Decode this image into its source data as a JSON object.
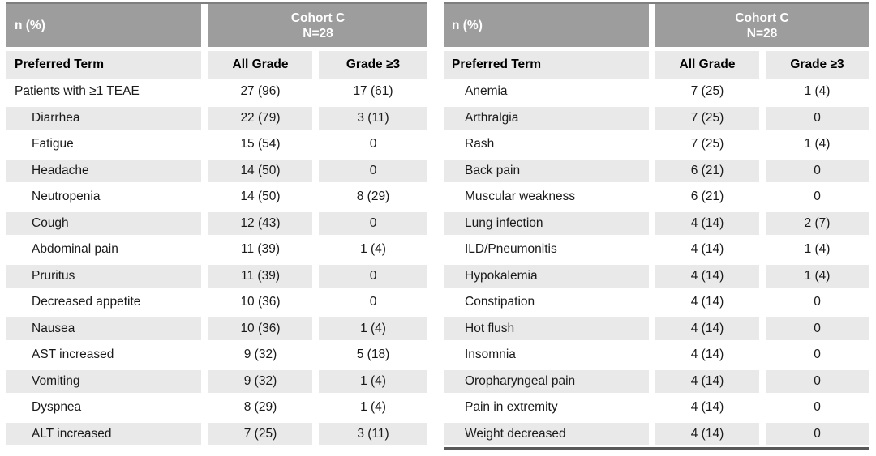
{
  "colors": {
    "header_bg": "#9D9D9D",
    "header_text": "#FFFFFF",
    "stripe_bg": "#E9E9E9",
    "top_border": "#7F7F7F",
    "bottom_border": "#595959",
    "body_text": "#1A1A1A"
  },
  "tables": [
    {
      "corner_label": "n (%)",
      "cohort_title": "Cohort C",
      "cohort_n": "N=28",
      "columns": [
        "Preferred Term",
        "All Grade",
        "Grade ≥3"
      ],
      "rows": [
        {
          "term": "Patients with ≥1 TEAE",
          "all_grade": "27 (96)",
          "grade_ge3": "17 (61)",
          "indent": false
        },
        {
          "term": "Diarrhea",
          "all_grade": "22 (79)",
          "grade_ge3": "3 (11)",
          "indent": true
        },
        {
          "term": "Fatigue",
          "all_grade": "15 (54)",
          "grade_ge3": "0",
          "indent": true
        },
        {
          "term": "Headache",
          "all_grade": "14 (50)",
          "grade_ge3": "0",
          "indent": true
        },
        {
          "term": "Neutropenia",
          "all_grade": "14 (50)",
          "grade_ge3": "8 (29)",
          "indent": true
        },
        {
          "term": "Cough",
          "all_grade": "12 (43)",
          "grade_ge3": "0",
          "indent": true
        },
        {
          "term": "Abdominal pain",
          "all_grade": "11 (39)",
          "grade_ge3": "1 (4)",
          "indent": true
        },
        {
          "term": "Pruritus",
          "all_grade": "11 (39)",
          "grade_ge3": "0",
          "indent": true
        },
        {
          "term": "Decreased appetite",
          "all_grade": "10 (36)",
          "grade_ge3": "0",
          "indent": true
        },
        {
          "term": "Nausea",
          "all_grade": "10 (36)",
          "grade_ge3": "1 (4)",
          "indent": true
        },
        {
          "term": "AST increased",
          "all_grade": "9 (32)",
          "grade_ge3": "5 (18)",
          "indent": true
        },
        {
          "term": "Vomiting",
          "all_grade": "9 (32)",
          "grade_ge3": "1 (4)",
          "indent": true
        },
        {
          "term": "Dyspnea",
          "all_grade": "8 (29)",
          "grade_ge3": "1 (4)",
          "indent": true
        },
        {
          "term": "ALT increased",
          "all_grade": "7 (25)",
          "grade_ge3": "3 (11)",
          "indent": true
        }
      ]
    },
    {
      "corner_label": "n (%)",
      "cohort_title": "Cohort C",
      "cohort_n": "N=28",
      "columns": [
        "Preferred Term",
        "All Grade",
        "Grade ≥3"
      ],
      "rows": [
        {
          "term": "Anemia",
          "all_grade": "7 (25)",
          "grade_ge3": "1 (4)",
          "indent": true
        },
        {
          "term": "Arthralgia",
          "all_grade": "7 (25)",
          "grade_ge3": "0",
          "indent": true
        },
        {
          "term": "Rash",
          "all_grade": "7 (25)",
          "grade_ge3": "1 (4)",
          "indent": true
        },
        {
          "term": "Back pain",
          "all_grade": "6 (21)",
          "grade_ge3": "0",
          "indent": true
        },
        {
          "term": "Muscular weakness",
          "all_grade": "6 (21)",
          "grade_ge3": "0",
          "indent": true
        },
        {
          "term": "Lung infection",
          "all_grade": "4 (14)",
          "grade_ge3": "2 (7)",
          "indent": true
        },
        {
          "term": "ILD/Pneumonitis",
          "all_grade": "4 (14)",
          "grade_ge3": "1 (4)",
          "indent": true
        },
        {
          "term": "Hypokalemia",
          "all_grade": "4 (14)",
          "grade_ge3": "1 (4)",
          "indent": true
        },
        {
          "term": "Constipation",
          "all_grade": "4 (14)",
          "grade_ge3": "0",
          "indent": true
        },
        {
          "term": "Hot flush",
          "all_grade": "4 (14)",
          "grade_ge3": "0",
          "indent": true
        },
        {
          "term": "Insomnia",
          "all_grade": "4 (14)",
          "grade_ge3": "0",
          "indent": true
        },
        {
          "term": "Oropharyngeal pain",
          "all_grade": "4 (14)",
          "grade_ge3": "0",
          "indent": true
        },
        {
          "term": "Pain in extremity",
          "all_grade": "4 (14)",
          "grade_ge3": "0",
          "indent": true
        },
        {
          "term": "Weight decreased",
          "all_grade": "4 (14)",
          "grade_ge3": "0",
          "indent": true
        }
      ]
    }
  ]
}
